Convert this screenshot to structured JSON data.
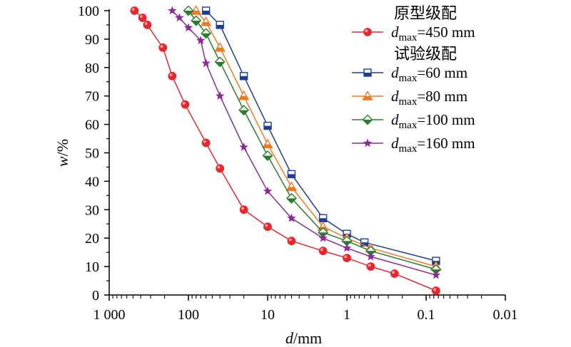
{
  "chart_data": {
    "type": "line",
    "xlabel": {
      "italic": "d",
      "rest": "/mm"
    },
    "ylabel": {
      "italic": "w",
      "rest": "/%"
    },
    "x_scale": "log-reversed",
    "xlim": [
      1000,
      0.01
    ],
    "ylim": [
      0,
      100
    ],
    "x_ticks": [
      {
        "value": 1000,
        "label": "1 000"
      },
      {
        "value": 100,
        "label": "100"
      },
      {
        "value": 10,
        "label": "10"
      },
      {
        "value": 1,
        "label": "1"
      },
      {
        "value": 0.1,
        "label": "0.1"
      },
      {
        "value": 0.01,
        "label": "0.01"
      }
    ],
    "y_ticks": [
      0,
      10,
      20,
      30,
      40,
      50,
      60,
      70,
      80,
      90,
      100
    ],
    "legend_position": "top-right",
    "legend_groups": [
      {
        "heading": "原型级配",
        "series": [
          0
        ]
      },
      {
        "heading": "试验级配",
        "series": [
          1,
          2,
          3,
          4
        ]
      }
    ],
    "series": [
      {
        "name_sym": "d",
        "name_sub": "max",
        "name_val": "=450 mm",
        "color": "#e8262c",
        "marker": "circle",
        "x": [
          480,
          380,
          330,
          210,
          160,
          110,
          60,
          40,
          20,
          10,
          5,
          2,
          1,
          0.5,
          0.25,
          0.075
        ],
        "y": [
          100,
          97.5,
          95,
          87,
          77,
          67,
          53.5,
          44.5,
          30,
          24,
          19,
          15.5,
          13,
          10,
          7.5,
          1.5
        ]
      },
      {
        "name_sym": "d",
        "name_sub": "max",
        "name_val": "=60 mm",
        "color": "#1f3c96",
        "marker": "square",
        "x": [
          60,
          40,
          20,
          10,
          5,
          2,
          1,
          0.6,
          0.075
        ],
        "y": [
          100,
          95,
          77,
          59.5,
          42.5,
          27,
          21.5,
          18.5,
          12
        ]
      },
      {
        "name_sym": "d",
        "name_sub": "max",
        "name_val": "=80 mm",
        "color": "#f07a22",
        "marker": "triangle",
        "x": [
          80,
          60,
          40,
          20,
          10,
          5,
          2,
          1,
          0.5,
          0.075
        ],
        "y": [
          100,
          96,
          87,
          70,
          53,
          38,
          24,
          20,
          16.5,
          10
        ]
      },
      {
        "name_sym": "d",
        "name_sub": "max",
        "name_val": "=100 mm",
        "color": "#2a7d2e",
        "marker": "diamond",
        "x": [
          100,
          80,
          60,
          40,
          20,
          10,
          5,
          2,
          1,
          0.5,
          0.075
        ],
        "y": [
          100,
          96.5,
          92,
          82,
          65,
          49,
          34,
          22,
          19,
          15.5,
          9
        ]
      },
      {
        "name_sym": "d",
        "name_sub": "max",
        "name_val": "=160 mm",
        "color": "#8a2a96",
        "marker": "star",
        "x": [
          160,
          130,
          100,
          70,
          60,
          40,
          20,
          10,
          5,
          2,
          1,
          0.5,
          0.075
        ],
        "y": [
          100,
          97.5,
          94,
          89.5,
          81.5,
          70,
          52,
          36.5,
          27,
          20,
          16.5,
          13.5,
          7
        ]
      }
    ]
  }
}
